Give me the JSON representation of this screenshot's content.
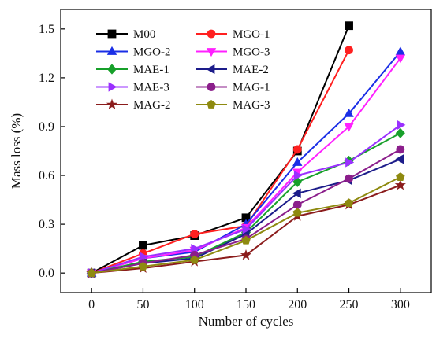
{
  "chart_data": {
    "type": "line",
    "title": "",
    "xlabel": "Number of cycles",
    "ylabel": "Mass loss (%)",
    "x": [
      0,
      50,
      100,
      150,
      200,
      250,
      300
    ],
    "xlim": [
      -30,
      330
    ],
    "ylim": [
      -0.12,
      1.62
    ],
    "xticks": [
      0,
      50,
      100,
      150,
      200,
      250,
      300
    ],
    "yticks": [
      0.0,
      0.3,
      0.6,
      0.9,
      1.2,
      1.5
    ],
    "ytick_labels": [
      "0.0",
      "0.3",
      "0.6",
      "0.9",
      "1.2",
      "1.5"
    ],
    "grid": false,
    "legend_position": "top-left",
    "series": [
      {
        "name": "M00",
        "color": "#000000",
        "marker": "square",
        "values": [
          0.0,
          0.17,
          0.23,
          0.34,
          0.75,
          1.52,
          null
        ]
      },
      {
        "name": "MGO-1",
        "color": "#ff2020",
        "marker": "circle",
        "values": [
          0.0,
          0.12,
          0.24,
          0.29,
          0.76,
          1.37,
          null
        ]
      },
      {
        "name": "MGO-2",
        "color": "#1a2ee6",
        "marker": "triangle-up",
        "values": [
          0.0,
          0.09,
          0.13,
          0.3,
          0.68,
          0.98,
          1.36
        ]
      },
      {
        "name": "MGO-3",
        "color": "#ff20ff",
        "marker": "triangle-down",
        "values": [
          0.0,
          0.09,
          0.14,
          0.28,
          0.62,
          0.9,
          1.32
        ]
      },
      {
        "name": "MAE-1",
        "color": "#17a02a",
        "marker": "diamond",
        "values": [
          0.0,
          0.07,
          0.1,
          0.25,
          0.56,
          0.69,
          0.86
        ]
      },
      {
        "name": "MAE-2",
        "color": "#1c1c8a",
        "marker": "triangle-left",
        "values": [
          0.0,
          0.06,
          0.09,
          0.24,
          0.49,
          0.57,
          0.7
        ]
      },
      {
        "name": "MAE-3",
        "color": "#9a30ff",
        "marker": "triangle-right",
        "values": [
          0.0,
          0.1,
          0.15,
          0.27,
          0.6,
          0.68,
          0.91
        ]
      },
      {
        "name": "MAG-1",
        "color": "#8b1e8b",
        "marker": "circle",
        "values": [
          0.0,
          0.06,
          0.11,
          0.21,
          0.42,
          0.58,
          0.76
        ]
      },
      {
        "name": "MAG-2",
        "color": "#8b1c1c",
        "marker": "star",
        "values": [
          0.0,
          0.03,
          0.07,
          0.11,
          0.35,
          0.42,
          0.54
        ]
      },
      {
        "name": "MAG-3",
        "color": "#8e8a10",
        "marker": "pentagon",
        "values": [
          0.0,
          0.04,
          0.08,
          0.2,
          0.37,
          0.43,
          0.59
        ]
      }
    ]
  }
}
